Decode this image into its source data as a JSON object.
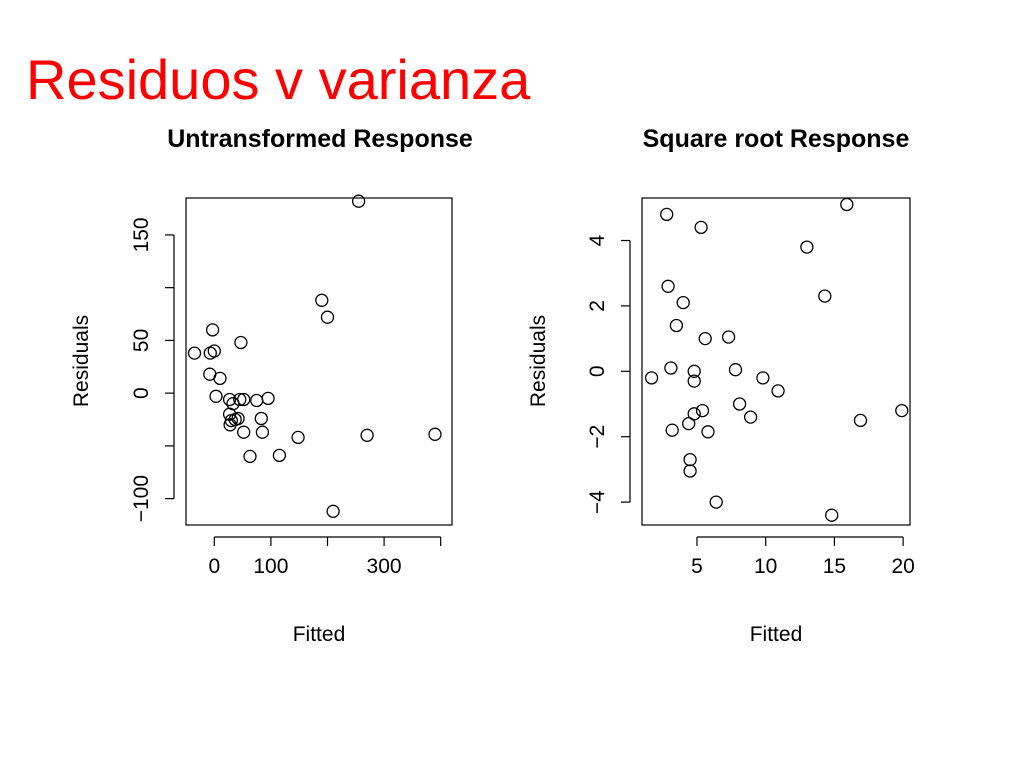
{
  "slide": {
    "title": "Residuos v varianza",
    "title_color": "#ff0000"
  },
  "chart_data": [
    {
      "type": "scatter",
      "title": "Untransformed Response",
      "xlabel": "Fitted",
      "ylabel": "Residuals",
      "xlim": [
        -50,
        420
      ],
      "ylim": [
        -125,
        185
      ],
      "xticks": [
        0,
        100,
        300
      ],
      "xtick_positions": [
        0,
        100,
        200,
        300,
        400
      ],
      "yticks": [
        150,
        50,
        0,
        -100
      ],
      "ytick_labels": [
        "150",
        "50",
        "0",
        "−100"
      ],
      "ytick_positions": [
        -100,
        -50,
        0,
        50,
        100,
        150
      ],
      "grid": false,
      "points": [
        {
          "x": -35,
          "y": 38
        },
        {
          "x": -7,
          "y": 38
        },
        {
          "x": -3,
          "y": 60
        },
        {
          "x": 0,
          "y": 40
        },
        {
          "x": -8,
          "y": 18
        },
        {
          "x": 10,
          "y": 14
        },
        {
          "x": 3,
          "y": -3
        },
        {
          "x": 47,
          "y": 48
        },
        {
          "x": 27,
          "y": -6
        },
        {
          "x": 33,
          "y": -10
        },
        {
          "x": 45,
          "y": -6
        },
        {
          "x": 52,
          "y": -6
        },
        {
          "x": 75,
          "y": -7
        },
        {
          "x": 95,
          "y": -5
        },
        {
          "x": 27,
          "y": -20
        },
        {
          "x": 30,
          "y": -26
        },
        {
          "x": 37,
          "y": -25
        },
        {
          "x": 42,
          "y": -24
        },
        {
          "x": 28,
          "y": -30
        },
        {
          "x": 83,
          "y": -24
        },
        {
          "x": 52,
          "y": -37
        },
        {
          "x": 85,
          "y": -37
        },
        {
          "x": 148,
          "y": -42
        },
        {
          "x": 63,
          "y": -60
        },
        {
          "x": 115,
          "y": -59
        },
        {
          "x": 190,
          "y": 88
        },
        {
          "x": 200,
          "y": 72
        },
        {
          "x": 255,
          "y": 182
        },
        {
          "x": 270,
          "y": -40
        },
        {
          "x": 210,
          "y": -112
        },
        {
          "x": 390,
          "y": -39
        }
      ]
    },
    {
      "type": "scatter",
      "title": "Square root Response",
      "xlabel": "Fitted",
      "ylabel": "Residuals",
      "xlim": [
        1,
        20.5
      ],
      "ylim": [
        -4.7,
        5.3
      ],
      "xticks": [
        5,
        10,
        15,
        20
      ],
      "yticks": [
        4,
        2,
        0,
        -2,
        -4
      ],
      "ytick_labels": [
        "4",
        "2",
        "0",
        "−2",
        "−4"
      ],
      "grid": false,
      "points": [
        {
          "x": 2.8,
          "y": 4.8
        },
        {
          "x": 5.3,
          "y": 4.4
        },
        {
          "x": 2.9,
          "y": 2.6
        },
        {
          "x": 4.0,
          "y": 2.1
        },
        {
          "x": 3.5,
          "y": 1.4
        },
        {
          "x": 5.6,
          "y": 1.0
        },
        {
          "x": 7.3,
          "y": 1.05
        },
        {
          "x": 1.7,
          "y": -0.2
        },
        {
          "x": 3.1,
          "y": 0.1
        },
        {
          "x": 4.8,
          "y": 0.0
        },
        {
          "x": 4.8,
          "y": -0.3
        },
        {
          "x": 7.8,
          "y": 0.05
        },
        {
          "x": 9.8,
          "y": -0.2
        },
        {
          "x": 10.9,
          "y": -0.6
        },
        {
          "x": 8.1,
          "y": -1.0
        },
        {
          "x": 4.8,
          "y": -1.3
        },
        {
          "x": 5.4,
          "y": -1.2
        },
        {
          "x": 4.4,
          "y": -1.6
        },
        {
          "x": 8.9,
          "y": -1.4
        },
        {
          "x": 3.2,
          "y": -1.8
        },
        {
          "x": 5.8,
          "y": -1.85
        },
        {
          "x": 4.5,
          "y": -2.7
        },
        {
          "x": 4.5,
          "y": -3.05
        },
        {
          "x": 6.4,
          "y": -4.0
        },
        {
          "x": 13.0,
          "y": 3.8
        },
        {
          "x": 14.3,
          "y": 2.3
        },
        {
          "x": 15.9,
          "y": 5.1
        },
        {
          "x": 16.9,
          "y": -1.5
        },
        {
          "x": 19.9,
          "y": -1.2
        },
        {
          "x": 14.8,
          "y": -4.4
        }
      ]
    }
  ]
}
